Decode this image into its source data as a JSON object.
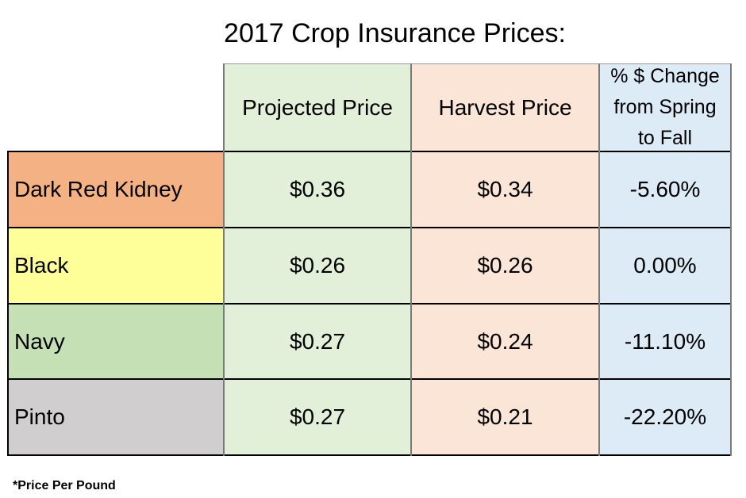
{
  "title": "2017 Crop Insurance Prices:",
  "columns": {
    "projected": "Projected Price",
    "harvest": "Harvest Price",
    "change_line1": "% $ Change",
    "change_line2": "from Spring",
    "change_line3": "to Fall"
  },
  "rows": [
    {
      "name": "Dark Red Kidney",
      "projected": "$0.36",
      "harvest": "$0.34",
      "change": "-5.60%",
      "color": "#f4b183"
    },
    {
      "name": "Black",
      "projected": "$0.26",
      "harvest": "$0.26",
      "change": "0.00%",
      "color": "#ffff99"
    },
    {
      "name": "Navy",
      "projected": "$0.27",
      "harvest": "$0.24",
      "change": "-11.10%",
      "color": "#c5e0b4"
    },
    {
      "name": "Pinto",
      "projected": "$0.27",
      "harvest": "$0.21",
      "change": "-22.20%",
      "color": "#d0cece"
    }
  ],
  "colors": {
    "projected_fill": "#e2f0d9",
    "harvest_fill": "#fbe5d6",
    "change_fill": "#ddebf7"
  },
  "footnote": "*Price Per Pound"
}
